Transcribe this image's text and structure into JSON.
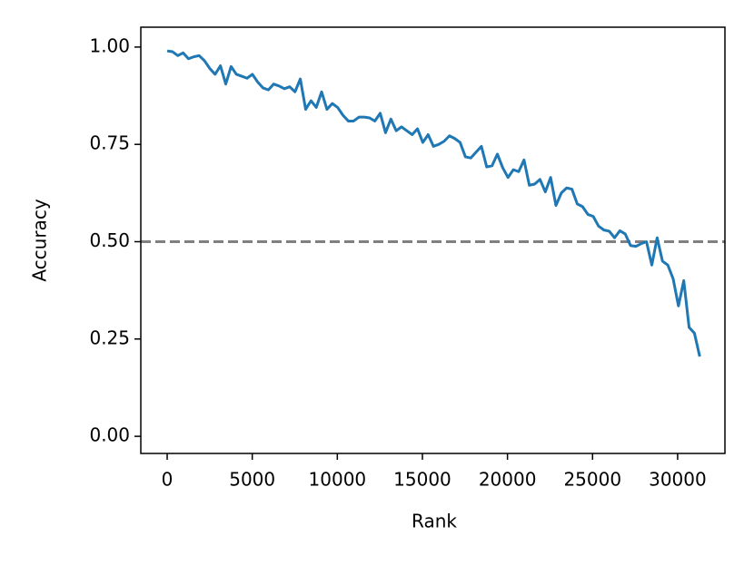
{
  "chart_data": {
    "type": "line",
    "xlabel": "Rank",
    "ylabel": "Accuracy",
    "x": [
      0,
      313,
      626,
      939,
      1252,
      1565,
      1878,
      2191,
      2504,
      2817,
      3130,
      3443,
      3756,
      4069,
      4382,
      4695,
      5008,
      5321,
      5634,
      5947,
      6260,
      6573,
      6886,
      7199,
      7512,
      7825,
      8138,
      8451,
      8764,
      9077,
      9390,
      9703,
      10016,
      10329,
      10642,
      10955,
      11268,
      11581,
      11894,
      12207,
      12520,
      12833,
      13146,
      13459,
      13772,
      14085,
      14398,
      14711,
      15024,
      15337,
      15650,
      15963,
      16276,
      16589,
      16902,
      17215,
      17528,
      17841,
      18154,
      18467,
      18780,
      19093,
      19406,
      19719,
      20032,
      20345,
      20658,
      20971,
      21284,
      21597,
      21910,
      22223,
      22536,
      22849,
      23162,
      23475,
      23788,
      24101,
      24414,
      24727,
      25040,
      25353,
      25666,
      25979,
      26292,
      26605,
      26918,
      27231,
      27544,
      27857,
      28170,
      28483,
      28796,
      29109,
      29422,
      29735,
      30048,
      30361,
      30674,
      30987,
      31300
    ],
    "series": [
      {
        "color": "#1f77b4",
        "values": [
          0.99,
          0.988,
          0.978,
          0.985,
          0.97,
          0.975,
          0.978,
          0.965,
          0.945,
          0.93,
          0.952,
          0.905,
          0.95,
          0.93,
          0.925,
          0.92,
          0.93,
          0.91,
          0.895,
          0.89,
          0.905,
          0.9,
          0.893,
          0.898,
          0.885,
          0.918,
          0.84,
          0.862,
          0.845,
          0.885,
          0.84,
          0.855,
          0.845,
          0.825,
          0.81,
          0.81,
          0.82,
          0.82,
          0.818,
          0.81,
          0.83,
          0.78,
          0.815,
          0.785,
          0.795,
          0.785,
          0.775,
          0.79,
          0.755,
          0.775,
          0.745,
          0.75,
          0.758,
          0.772,
          0.765,
          0.755,
          0.718,
          0.715,
          0.73,
          0.745,
          0.692,
          0.695,
          0.725,
          0.69,
          0.665,
          0.685,
          0.68,
          0.71,
          0.645,
          0.648,
          0.66,
          0.628,
          0.665,
          0.593,
          0.625,
          0.638,
          0.635,
          0.597,
          0.59,
          0.57,
          0.565,
          0.54,
          0.53,
          0.527,
          0.51,
          0.528,
          0.52,
          0.49,
          0.488,
          0.495,
          0.5,
          0.44,
          0.51,
          0.45,
          0.44,
          0.405,
          0.335,
          0.4,
          0.28,
          0.265,
          0.205
        ]
      }
    ],
    "hline": {
      "value": 0.5,
      "color": "#808080"
    },
    "xlim": [
      -1550,
      32780
    ],
    "xticks": [
      0,
      5000,
      10000,
      15000,
      20000,
      25000,
      30000
    ],
    "ylim": [
      -0.044,
      1.051
    ],
    "yticks": [
      {
        "value": 0,
        "label": "0.00"
      },
      {
        "value": 0.25,
        "label": "0.25"
      },
      {
        "value": 0.5,
        "label": "0.50"
      },
      {
        "value": 0.75,
        "label": "0.75"
      },
      {
        "value": 1,
        "label": "1.00"
      }
    ]
  }
}
